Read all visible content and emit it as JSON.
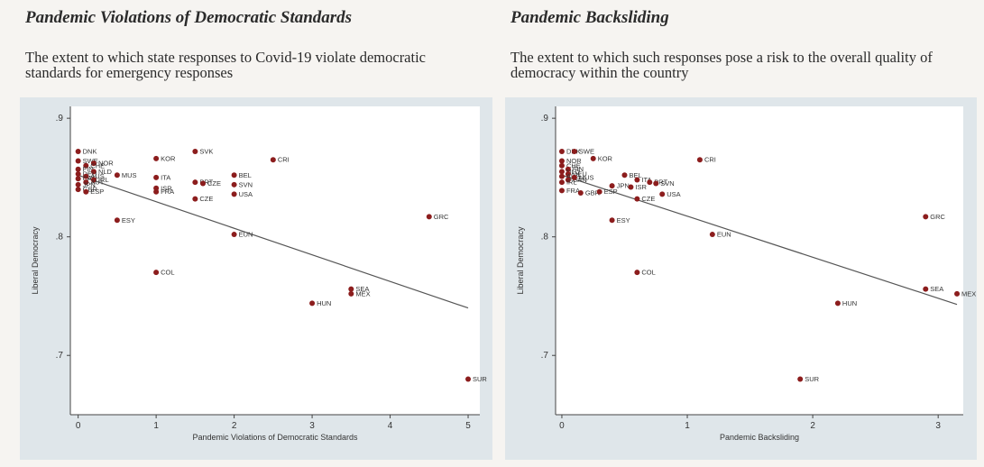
{
  "panels": [
    {
      "title": "Pandemic Violations of Democratic Standards",
      "subtitle": "The extent to which state responses to Covid-19 violate democratic standards for emergency responses"
    },
    {
      "title": "Pandemic Backsliding",
      "subtitle": "The extent to which such responses pose a risk to the overall quality of democracy within the country"
    }
  ],
  "colors": {
    "outer": "#dfe6ea",
    "plot": "#ffffff",
    "point": "#8c1d1d",
    "line": "#555555"
  },
  "chart_data": [
    {
      "type": "scatter",
      "title": "Pandemic Violations of Democratic Standards",
      "xlabel": "Pandemic Violations of Democratic Standards",
      "ylabel": "Liberal Democracy",
      "xlim": [
        -0.1,
        5.15
      ],
      "ylim": [
        0.65,
        0.91
      ],
      "xticks": [
        "0",
        "1",
        "2",
        "3",
        "4",
        "5"
      ],
      "yticks": [
        ".7",
        ".8",
        ".9"
      ],
      "grid": false,
      "fit_line": {
        "x": [
          0,
          5
        ],
        "y": [
          0.852,
          0.74
        ]
      },
      "points": [
        {
          "label": "DNK",
          "x": 0.0,
          "y": 0.872
        },
        {
          "label": "SWE",
          "x": 0.0,
          "y": 0.864
        },
        {
          "label": "NOR",
          "x": 0.2,
          "y": 0.862
        },
        {
          "label": "CHE",
          "x": 0.1,
          "y": 0.86
        },
        {
          "label": "FIN",
          "x": 0.0,
          "y": 0.857
        },
        {
          "label": "NLD",
          "x": 0.2,
          "y": 0.855
        },
        {
          "label": "DEU",
          "x": 0.0,
          "y": 0.853
        },
        {
          "label": "AUS",
          "x": 0.1,
          "y": 0.851
        },
        {
          "label": "CAN",
          "x": 0.0,
          "y": 0.849
        },
        {
          "label": "IRL",
          "x": 0.2,
          "y": 0.848
        },
        {
          "label": "AUT",
          "x": 0.1,
          "y": 0.846
        },
        {
          "label": "JPN",
          "x": 0.0,
          "y": 0.844
        },
        {
          "label": "GBR",
          "x": 0.0,
          "y": 0.84
        },
        {
          "label": "ESP",
          "x": 0.1,
          "y": 0.838
        },
        {
          "label": "MUS",
          "x": 0.5,
          "y": 0.852
        },
        {
          "label": "KOR",
          "x": 1.0,
          "y": 0.866
        },
        {
          "label": "SVK",
          "x": 1.5,
          "y": 0.872
        },
        {
          "label": "CRI",
          "x": 2.5,
          "y": 0.865
        },
        {
          "label": "ITA",
          "x": 1.0,
          "y": 0.85
        },
        {
          "label": "BEL",
          "x": 2.0,
          "y": 0.852
        },
        {
          "label": "PRT",
          "x": 1.5,
          "y": 0.846
        },
        {
          "label": "CZE",
          "x": 1.6,
          "y": 0.845
        },
        {
          "label": "SVN",
          "x": 2.0,
          "y": 0.844
        },
        {
          "label": "ISR",
          "x": 1.0,
          "y": 0.841
        },
        {
          "label": "FRA",
          "x": 1.0,
          "y": 0.838
        },
        {
          "label": "USA",
          "x": 2.0,
          "y": 0.836
        },
        {
          "label": "CZE",
          "x": 1.5,
          "y": 0.832
        },
        {
          "label": "GRC",
          "x": 4.5,
          "y": 0.817
        },
        {
          "label": "ESY",
          "x": 0.5,
          "y": 0.814
        },
        {
          "label": "EUN",
          "x": 2.0,
          "y": 0.802
        },
        {
          "label": "COL",
          "x": 1.0,
          "y": 0.77
        },
        {
          "label": "SEA",
          "x": 3.5,
          "y": 0.756
        },
        {
          "label": "MEX",
          "x": 3.5,
          "y": 0.752
        },
        {
          "label": "HUN",
          "x": 3.0,
          "y": 0.744
        },
        {
          "label": "SUR",
          "x": 5.0,
          "y": 0.68
        }
      ]
    },
    {
      "type": "scatter",
      "title": "Pandemic Backsliding",
      "xlabel": "Pandemic Backsliding",
      "ylabel": "Liberal Democracy",
      "xlim": [
        -0.05,
        3.2
      ],
      "ylim": [
        0.65,
        0.91
      ],
      "xticks": [
        "0",
        "1",
        "2",
        "3"
      ],
      "yticks": [
        ".7",
        ".8",
        ".9"
      ],
      "grid": false,
      "fit_line": {
        "x": [
          0,
          3.15
        ],
        "y": [
          0.852,
          0.743
        ]
      },
      "points": [
        {
          "label": "DNK",
          "x": 0.0,
          "y": 0.872
        },
        {
          "label": "SWE",
          "x": 0.1,
          "y": 0.872
        },
        {
          "label": "NOR",
          "x": 0.0,
          "y": 0.864
        },
        {
          "label": "KOR",
          "x": 0.25,
          "y": 0.866
        },
        {
          "label": "CRI",
          "x": 1.1,
          "y": 0.865
        },
        {
          "label": "CHE",
          "x": 0.0,
          "y": 0.86
        },
        {
          "label": "FIN",
          "x": 0.05,
          "y": 0.857
        },
        {
          "label": "NLD",
          "x": 0.0,
          "y": 0.855
        },
        {
          "label": "DEU",
          "x": 0.05,
          "y": 0.853
        },
        {
          "label": "AUS",
          "x": 0.0,
          "y": 0.851
        },
        {
          "label": "CAN",
          "x": 0.05,
          "y": 0.848
        },
        {
          "label": "IRL",
          "x": 0.0,
          "y": 0.846
        },
        {
          "label": "MUS",
          "x": 0.1,
          "y": 0.85
        },
        {
          "label": "BEL",
          "x": 0.5,
          "y": 0.852
        },
        {
          "label": "ITA",
          "x": 0.6,
          "y": 0.848
        },
        {
          "label": "PRT",
          "x": 0.7,
          "y": 0.846
        },
        {
          "label": "SVN",
          "x": 0.75,
          "y": 0.845
        },
        {
          "label": "JPN",
          "x": 0.4,
          "y": 0.843
        },
        {
          "label": "ISR",
          "x": 0.55,
          "y": 0.842
        },
        {
          "label": "FRA",
          "x": 0.0,
          "y": 0.839
        },
        {
          "label": "GBR",
          "x": 0.15,
          "y": 0.837
        },
        {
          "label": "ESP",
          "x": 0.3,
          "y": 0.838
        },
        {
          "label": "USA",
          "x": 0.8,
          "y": 0.836
        },
        {
          "label": "CZE",
          "x": 0.6,
          "y": 0.832
        },
        {
          "label": "GRC",
          "x": 2.9,
          "y": 0.817
        },
        {
          "label": "ESY",
          "x": 0.4,
          "y": 0.814
        },
        {
          "label": "EUN",
          "x": 1.2,
          "y": 0.802
        },
        {
          "label": "COL",
          "x": 0.6,
          "y": 0.77
        },
        {
          "label": "SEA",
          "x": 2.9,
          "y": 0.756
        },
        {
          "label": "MEX",
          "x": 3.15,
          "y": 0.752
        },
        {
          "label": "HUN",
          "x": 2.2,
          "y": 0.744
        },
        {
          "label": "SUR",
          "x": 1.9,
          "y": 0.68
        }
      ]
    }
  ]
}
